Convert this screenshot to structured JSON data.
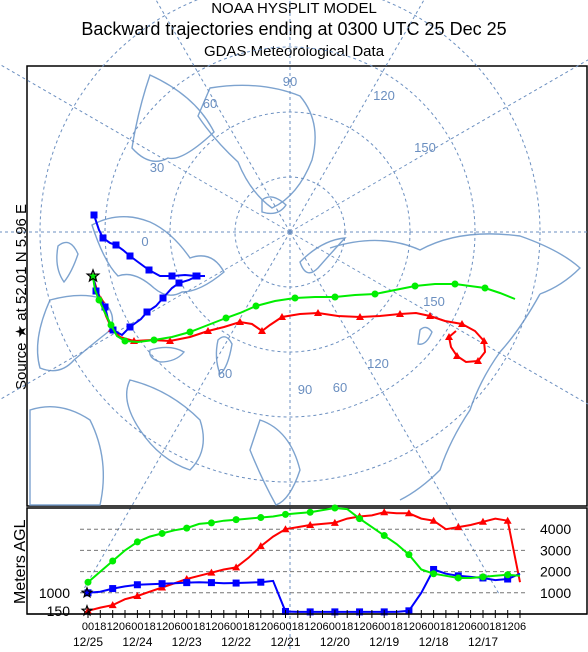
{
  "header": {
    "line1": "NOAA HYSPLIT MODEL",
    "line2": "Backward trajectories ending at 0300 UTC 25 Dec 25",
    "line3": "GDAS Meteorological Data"
  },
  "source_label": "Source ★ at 52.01 N 5.96 E",
  "map": {
    "grid_labels": [
      "90",
      "120",
      "60",
      "150",
      "30",
      "0",
      "150",
      "60",
      "120",
      "90",
      "60"
    ],
    "colors": {
      "grid": "#6b8fc0",
      "coast": "#7da3cf",
      "red": "#ff0000",
      "blue": "#0000ff",
      "green": "#00ee00"
    }
  },
  "chart_data": {
    "type": "line",
    "title": "",
    "ylabel": "Meters AGL",
    "height_ticks": [
      "4000",
      "3000",
      "2000",
      "1000"
    ],
    "start_labels": [
      "1000",
      "150"
    ],
    "hour_tick_labels": [
      "00",
      "18",
      "12",
      "06",
      "00",
      "18",
      "12",
      "06",
      "00",
      "18",
      "12",
      "06",
      "00",
      "18",
      "12",
      "06",
      "00",
      "18",
      "12",
      "06",
      "00",
      "18",
      "12",
      "06",
      "00",
      "18",
      "12",
      "06",
      "00",
      "18",
      "12",
      "06",
      "00",
      "18",
      "12",
      "06"
    ],
    "date_labels": [
      "12/25",
      "12/24",
      "12/23",
      "12/22",
      "12/21",
      "12/20",
      "12/19",
      "12/18",
      "12/17"
    ],
    "series": [
      {
        "name": "",
        "color": "red",
        "values": [
          150,
          300,
          420,
          700,
          850,
          1050,
          1250,
          1450,
          1650,
          1800,
          1950,
          2100,
          2200,
          2650,
          3200,
          3650,
          4000,
          4100,
          4200,
          4250,
          4300,
          4500,
          4600,
          4650,
          4800,
          4750,
          4750,
          4500,
          4400,
          4000,
          4100,
          4200,
          4350,
          4500,
          4400,
          1500
        ]
      },
      {
        "name": "",
        "color": "blue",
        "values": [
          1000,
          1050,
          1200,
          1300,
          1380,
          1400,
          1430,
          1450,
          1480,
          1500,
          1480,
          1450,
          1460,
          1480,
          1500,
          1560,
          120,
          100,
          100,
          100,
          100,
          100,
          100,
          100,
          100,
          100,
          150,
          1000,
          2100,
          1900,
          1800,
          1750,
          1700,
          1600,
          1650,
          1900
        ]
      },
      {
        "name": "",
        "color": "green",
        "values": [
          1500,
          2000,
          2500,
          3000,
          3400,
          3650,
          3800,
          3950,
          4050,
          4250,
          4300,
          4400,
          4450,
          4500,
          4550,
          4600,
          4700,
          4750,
          4800,
          4900,
          5000,
          4950,
          4500,
          4100,
          3700,
          3300,
          2800,
          2100,
          1900,
          1800,
          1700,
          1700,
          1750,
          1800,
          1850,
          1800
        ]
      }
    ],
    "ylim": [
      0,
      5000
    ]
  }
}
